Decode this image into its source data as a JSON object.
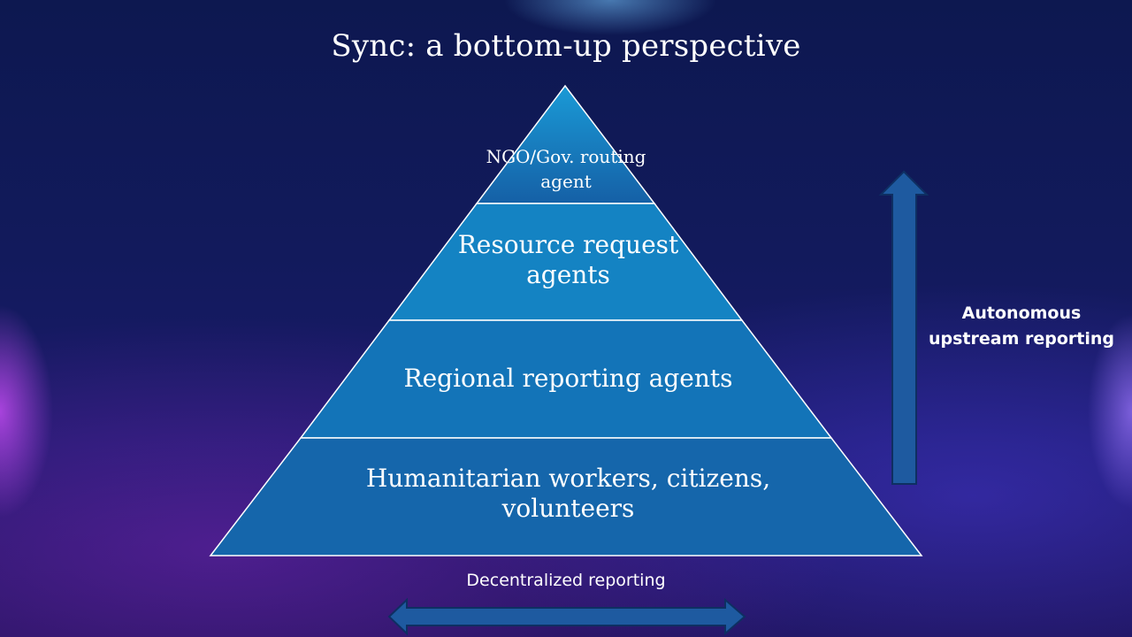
{
  "slide": {
    "title": "Sync: a bottom-up perspective"
  },
  "pyramid": {
    "tiers": [
      {
        "label": "NGO/Gov. routing agent"
      },
      {
        "label": "Resource request agents"
      },
      {
        "label": "Regional reporting agents"
      },
      {
        "label": "Humanitarian workers, citizens, volunteers"
      }
    ]
  },
  "arrows": {
    "vertical_label": "Autonomous upstream reporting",
    "horizontal_label": "Decentralized reporting"
  },
  "colors": {
    "tier_fill_top": "#1a9ad6",
    "tier_fill_bottom": "#1560a6",
    "arrow_fill": "#1e5aa0",
    "arrow_stroke": "#0e2f62",
    "divider": "#ffffff"
  }
}
